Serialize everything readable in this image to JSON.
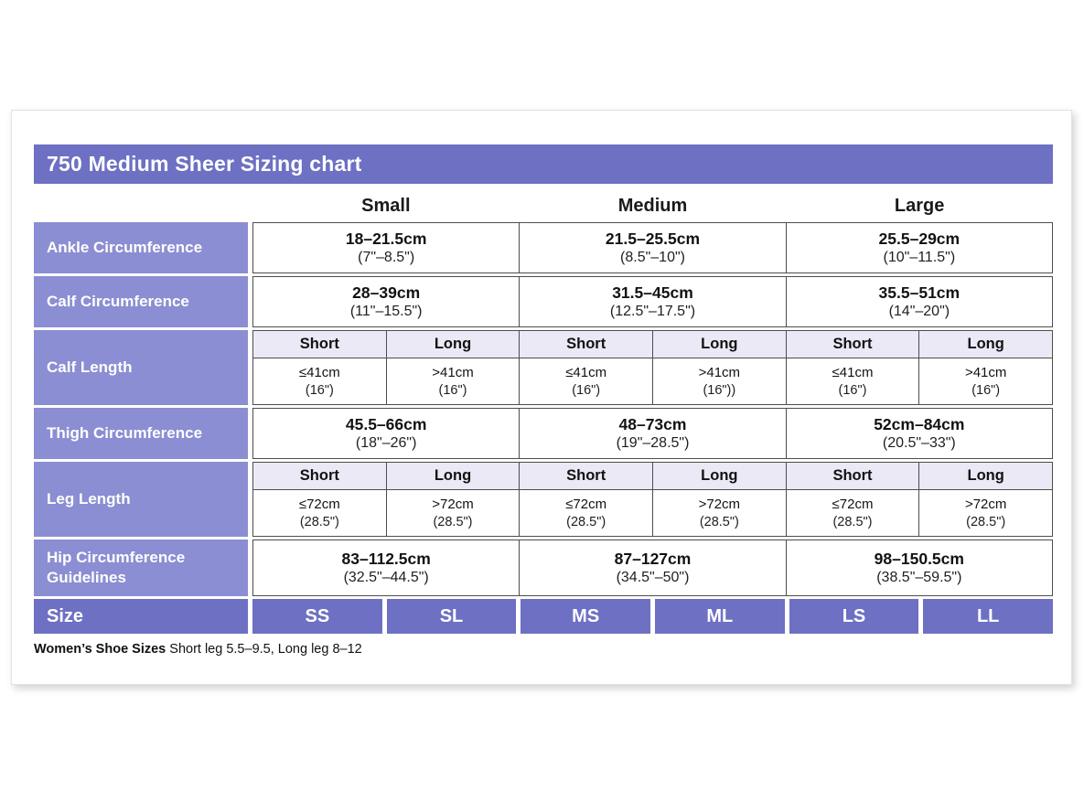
{
  "title": "750 Medium Sheer Sizing chart",
  "colors": {
    "header_purple": "#6d70c3",
    "label_purple": "#8b8ed2",
    "subheader_lavender": "#eae9f5",
    "border_gray": "#4d4d4d"
  },
  "size_headers": [
    "Small",
    "Medium",
    "Large"
  ],
  "rows": {
    "ankle": {
      "label": "Ankle Circumference",
      "values": [
        {
          "cm": "18–21.5cm",
          "inches": "(7\"–8.5\")"
        },
        {
          "cm": "21.5–25.5cm",
          "inches": "(8.5\"–10\")"
        },
        {
          "cm": "25.5–29cm",
          "inches": "(10\"–11.5\")"
        }
      ]
    },
    "calf_circumference": {
      "label": "Calf Circumference",
      "values": [
        {
          "cm": "28–39cm",
          "inches": "(11\"–15.5\")"
        },
        {
          "cm": "31.5–45cm",
          "inches": "(12.5\"–17.5\")"
        },
        {
          "cm": "35.5–51cm",
          "inches": "(14\"–20\")"
        }
      ]
    },
    "calf_length": {
      "label": "Calf Length",
      "subheaders": [
        "Short",
        "Long",
        "Short",
        "Long",
        "Short",
        "Long"
      ],
      "values": [
        {
          "cm": "≤41cm",
          "inches": "(16\")"
        },
        {
          "cm": ">41cm",
          "inches": "(16\")"
        },
        {
          "cm": "≤41cm",
          "inches": "(16\")"
        },
        {
          "cm": ">41cm",
          "inches": "(16\"))"
        },
        {
          "cm": "≤41cm",
          "inches": "(16\")"
        },
        {
          "cm": ">41cm",
          "inches": "(16\")"
        }
      ]
    },
    "thigh": {
      "label": "Thigh Circumference",
      "values": [
        {
          "cm": "45.5–66cm",
          "inches": "(18\"–26\")"
        },
        {
          "cm": "48–73cm",
          "inches": "(19\"–28.5\")"
        },
        {
          "cm": "52cm–84cm",
          "inches": "(20.5\"–33\")"
        }
      ]
    },
    "leg_length": {
      "label": "Leg Length",
      "subheaders": [
        "Short",
        "Long",
        "Short",
        "Long",
        "Short",
        "Long"
      ],
      "values": [
        {
          "cm": "≤72cm",
          "inches": "(28.5\")"
        },
        {
          "cm": ">72cm",
          "inches": "(28.5\")"
        },
        {
          "cm": "≤72cm",
          "inches": "(28.5\")"
        },
        {
          "cm": ">72cm",
          "inches": "(28.5\")"
        },
        {
          "cm": "≤72cm",
          "inches": "(28.5\")"
        },
        {
          "cm": ">72cm",
          "inches": "(28.5\")"
        }
      ]
    },
    "hip": {
      "label": "Hip Circumference Guidelines",
      "values": [
        {
          "cm": "83–112.5cm",
          "inches": "(32.5\"–44.5\")"
        },
        {
          "cm": "87–127cm",
          "inches": "(34.5\"–50\")"
        },
        {
          "cm": "98–150.5cm",
          "inches": "(38.5\"–59.5\")"
        }
      ]
    }
  },
  "size_row": {
    "label": "Size",
    "values": [
      "SS",
      "SL",
      "MS",
      "ML",
      "LS",
      "LL"
    ]
  },
  "footnote": {
    "bold": "Women’s Shoe Sizes",
    "text": " Short leg 5.5–9.5, Long leg 8–12"
  }
}
